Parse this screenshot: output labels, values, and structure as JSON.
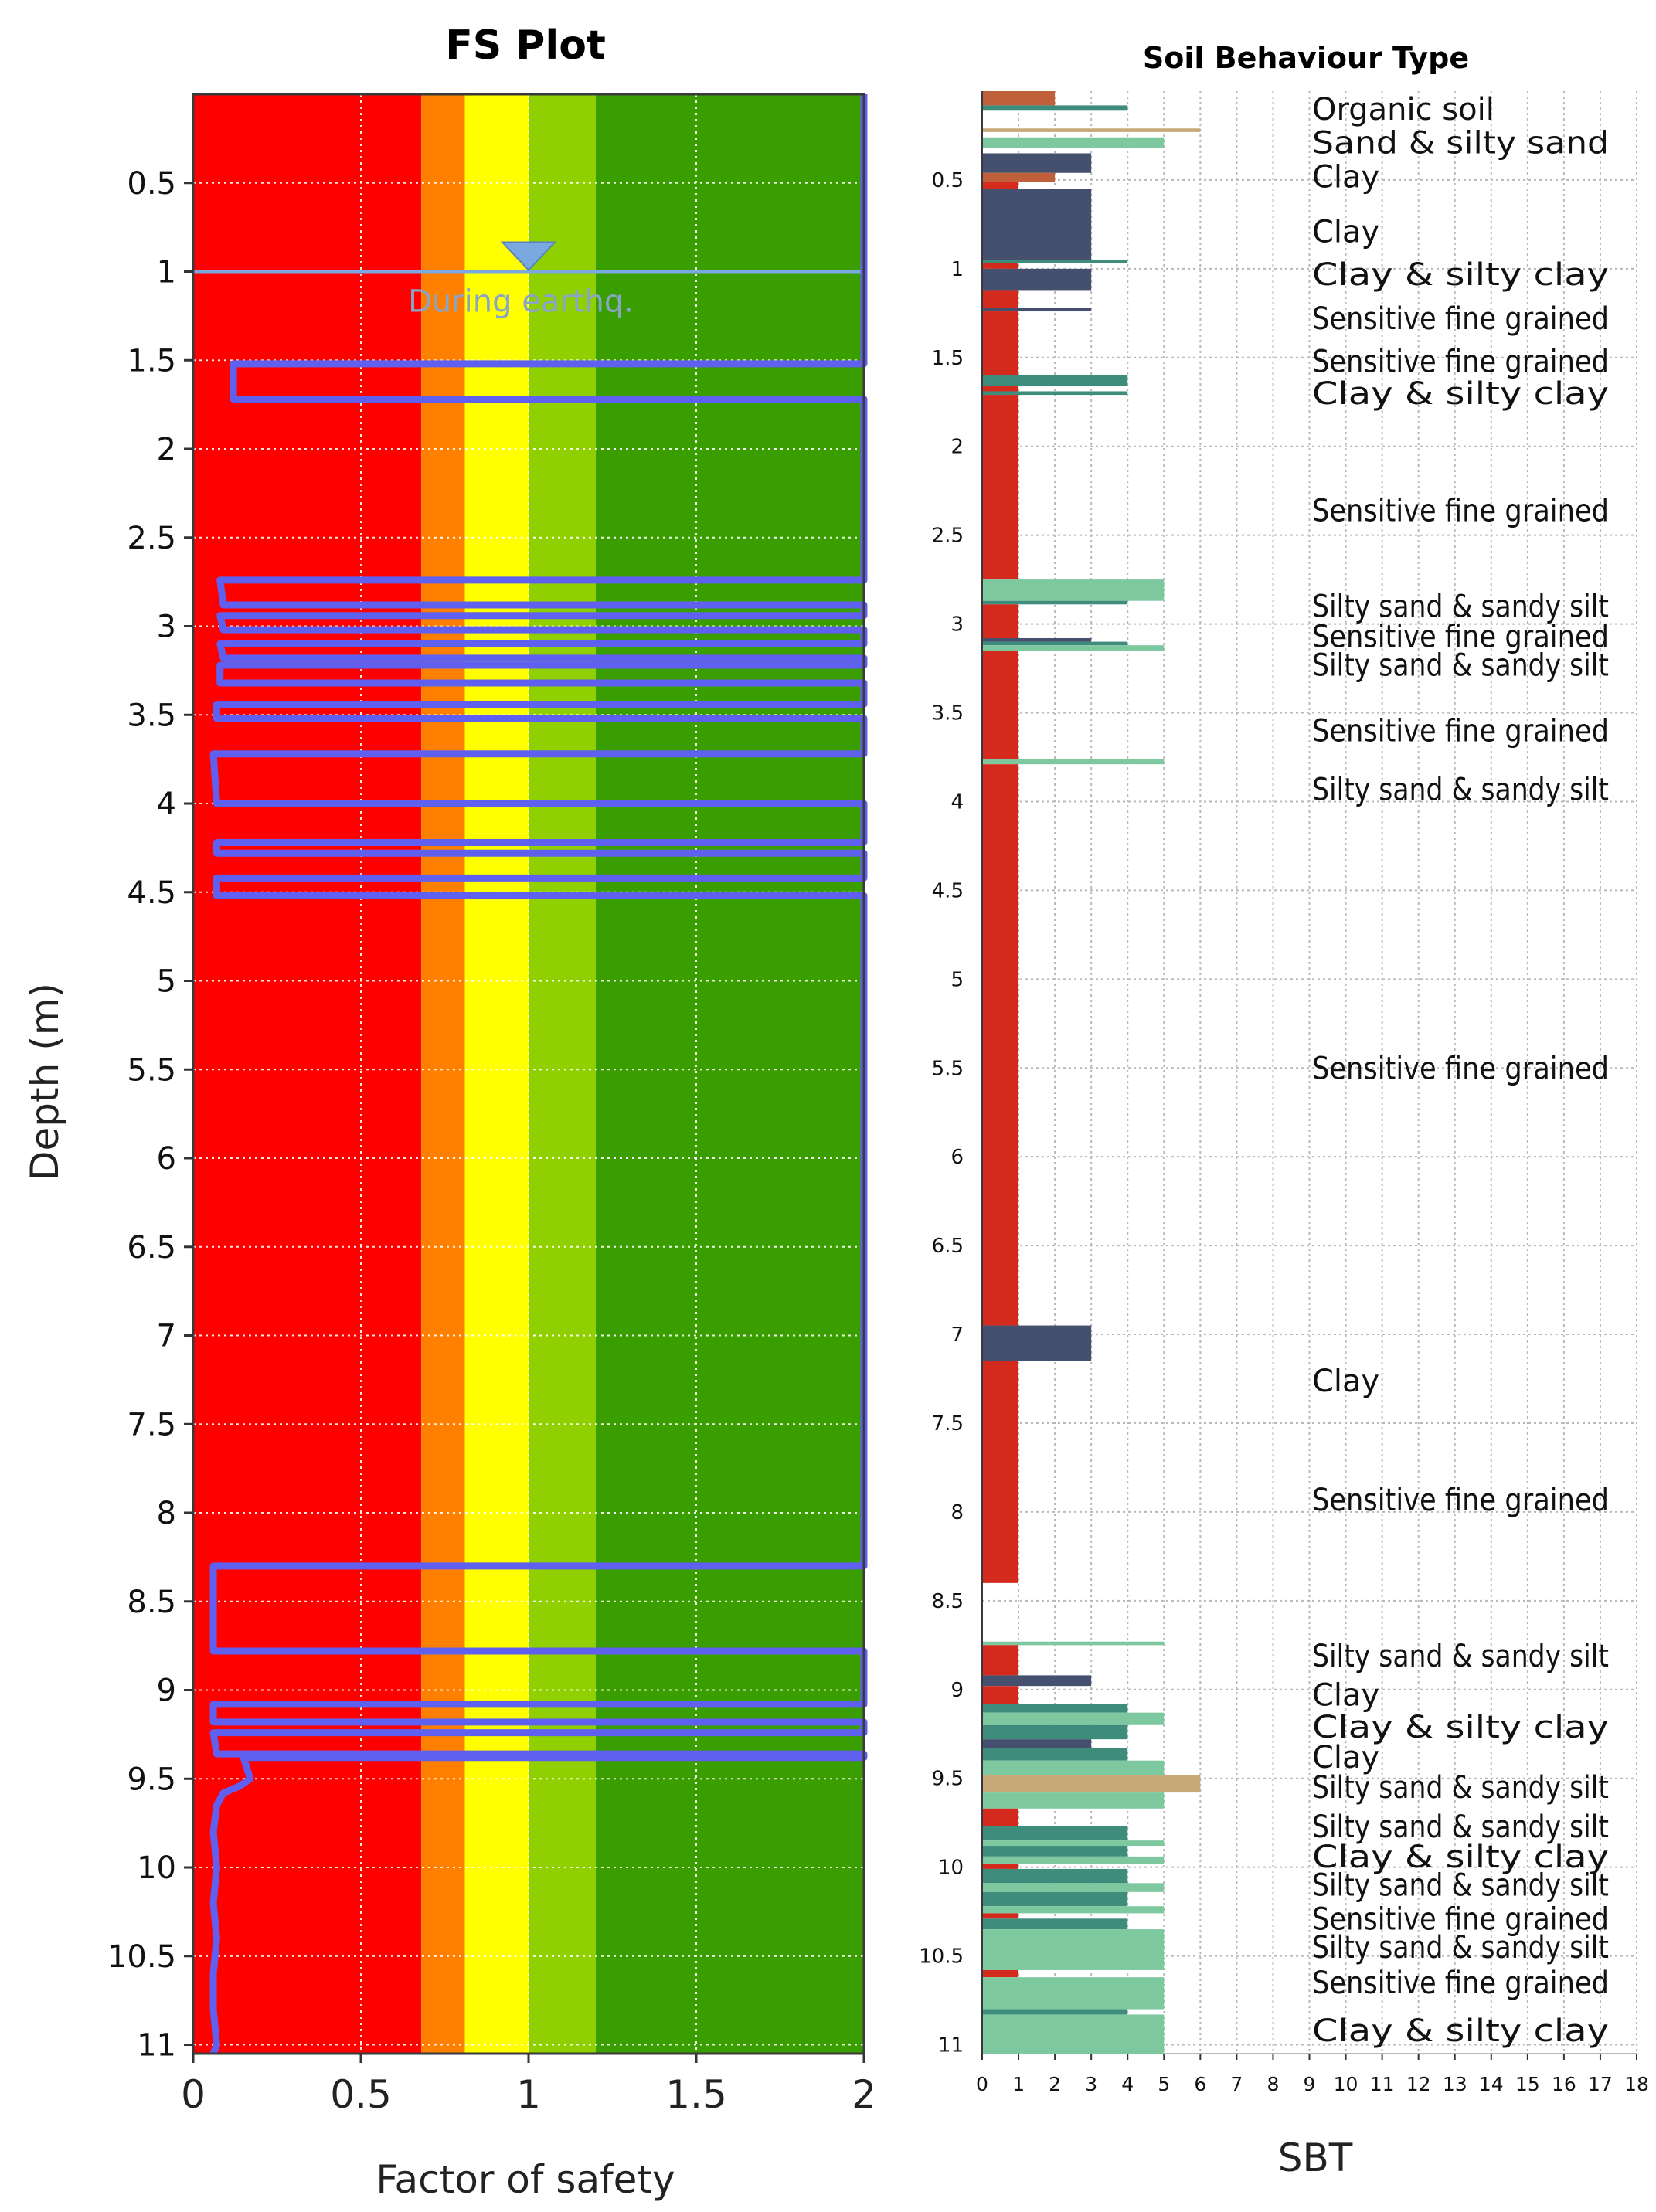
{
  "chart_data": [
    {
      "type": "line",
      "title": "FS Plot",
      "xlabel": "Factor of safety",
      "ylabel": "Depth (m)",
      "xlim": [
        0,
        2
      ],
      "ylim": [
        0,
        11.05
      ],
      "y_inverted": true,
      "xticks": [
        0,
        0.5,
        1,
        1.5,
        2
      ],
      "xtick_labels": [
        "0",
        "0.5",
        "1",
        "1.5",
        "2"
      ],
      "yticks": [
        0.5,
        1,
        1.5,
        2,
        2.5,
        3,
        3.5,
        4,
        4.5,
        5,
        5.5,
        6,
        6.5,
        7,
        7.5,
        8,
        8.5,
        9,
        9.5,
        10,
        10.5,
        11
      ],
      "ytick_labels": [
        "0.5",
        "1",
        "1.5",
        "2",
        "2.5",
        "3",
        "3.5",
        "4",
        "4.5",
        "5",
        "5.5",
        "6",
        "6.5",
        "7",
        "7.5",
        "8",
        "8.5",
        "9",
        "9.5",
        "10",
        "10.5",
        "11"
      ],
      "grid": true,
      "zones": [
        {
          "from": 0,
          "to": 0.68,
          "color": "#ff0000"
        },
        {
          "from": 0.68,
          "to": 0.81,
          "color": "#ff8000"
        },
        {
          "from": 0.81,
          "to": 1.0,
          "color": "#ffff00"
        },
        {
          "from": 1.0,
          "to": 1.2,
          "color": "#90d000"
        },
        {
          "from": 1.2,
          "to": 2.0,
          "color": "#3a9e00"
        }
      ],
      "water_table": {
        "depth": 1.0,
        "label": "During earthq.",
        "color": "#7aa8e0"
      },
      "series": [
        {
          "name": "FS",
          "color": "#6060f0",
          "points": [
            [
              2,
              0.0
            ],
            [
              2,
              1.52
            ],
            [
              0.12,
              1.52
            ],
            [
              0.12,
              1.72
            ],
            [
              2,
              1.72
            ],
            [
              2,
              2.74
            ],
            [
              0.08,
              2.74
            ],
            [
              0.09,
              2.88
            ],
            [
              2,
              2.88
            ],
            [
              2,
              2.94
            ],
            [
              0.08,
              2.94
            ],
            [
              0.09,
              3.02
            ],
            [
              2,
              3.02
            ],
            [
              2,
              3.1
            ],
            [
              0.08,
              3.1
            ],
            [
              0.09,
              3.18
            ],
            [
              2,
              3.18
            ],
            [
              2,
              3.22
            ],
            [
              0.08,
              3.22
            ],
            [
              0.08,
              3.32
            ],
            [
              2,
              3.32
            ],
            [
              2,
              3.44
            ],
            [
              0.07,
              3.44
            ],
            [
              0.07,
              3.52
            ],
            [
              2,
              3.52
            ],
            [
              2,
              3.72
            ],
            [
              0.06,
              3.72
            ],
            [
              0.07,
              4.0
            ],
            [
              2,
              4.0
            ],
            [
              2,
              4.22
            ],
            [
              0.07,
              4.22
            ],
            [
              0.07,
              4.28
            ],
            [
              2,
              4.28
            ],
            [
              2,
              4.42
            ],
            [
              0.07,
              4.42
            ],
            [
              0.07,
              4.52
            ],
            [
              2,
              4.52
            ],
            [
              2,
              8.3
            ],
            [
              0.06,
              8.3
            ],
            [
              0.06,
              8.78
            ],
            [
              2,
              8.78
            ],
            [
              2,
              9.08
            ],
            [
              0.06,
              9.08
            ],
            [
              0.06,
              9.18
            ],
            [
              2,
              9.18
            ],
            [
              2,
              9.24
            ],
            [
              0.06,
              9.24
            ],
            [
              0.07,
              9.36
            ],
            [
              2,
              9.36
            ],
            [
              2,
              9.38
            ],
            [
              0.15,
              9.38
            ],
            [
              0.17,
              9.5
            ],
            [
              0.14,
              9.54
            ],
            [
              0.09,
              9.58
            ],
            [
              0.07,
              9.65
            ],
            [
              0.06,
              9.8
            ],
            [
              0.07,
              10.0
            ],
            [
              0.06,
              10.2
            ],
            [
              0.07,
              10.4
            ],
            [
              0.06,
              10.6
            ],
            [
              0.06,
              10.8
            ],
            [
              0.07,
              11.0
            ],
            [
              0.06,
              11.05
            ]
          ]
        }
      ]
    },
    {
      "type": "bar",
      "orientation": "horizontal",
      "title": "Soil Behaviour Type",
      "xlabel": "SBT",
      "ylabel": "",
      "xlim": [
        0,
        18
      ],
      "ylim": [
        0,
        11.05
      ],
      "y_inverted": true,
      "xticks": [
        0,
        1,
        2,
        3,
        4,
        5,
        6,
        7,
        8,
        9,
        10,
        11,
        12,
        13,
        14,
        15,
        16,
        17,
        18
      ],
      "xtick_labels": [
        "0",
        "1",
        "2",
        "3",
        "4",
        "5",
        "6",
        "7",
        "8",
        "9",
        "10",
        "11",
        "12",
        "13",
        "14",
        "15",
        "16",
        "17",
        "18"
      ],
      "yticks": [
        0.5,
        1,
        1.5,
        2,
        2.5,
        3,
        3.5,
        4,
        4.5,
        5,
        5.5,
        6,
        6.5,
        7,
        7.5,
        8,
        8.5,
        9,
        9.5,
        10,
        10.5,
        11
      ],
      "ytick_labels": [
        "0.5",
        "1",
        "1.5",
        "2",
        "2.5",
        "3",
        "3.5",
        "4",
        "4.5",
        "5",
        "5.5",
        "6",
        "6.5",
        "7",
        "7.5",
        "8",
        "8.5",
        "9",
        "9.5",
        "10",
        "10.5",
        "11"
      ],
      "grid": true,
      "colors": {
        "1": "#d42a1e",
        "2": "#c0603a",
        "3": "#45506e",
        "4": "#3e8c7c",
        "5": "#7ec8a0",
        "6": "#c8a878",
        "7": "#a8c890"
      },
      "bars": [
        {
          "top": 0.0,
          "bottom": 0.08,
          "value": 2
        },
        {
          "top": 0.08,
          "bottom": 0.11,
          "value": 4
        },
        {
          "top": 0.21,
          "bottom": 0.23,
          "value": 6
        },
        {
          "top": 0.26,
          "bottom": 0.32,
          "value": 5
        },
        {
          "top": 0.35,
          "bottom": 0.46,
          "value": 3
        },
        {
          "top": 0.46,
          "bottom": 0.51,
          "value": 2
        },
        {
          "top": 0.51,
          "bottom": 0.55,
          "value": 1
        },
        {
          "top": 0.55,
          "bottom": 0.95,
          "value": 3
        },
        {
          "top": 0.95,
          "bottom": 0.97,
          "value": 4
        },
        {
          "top": 0.97,
          "bottom": 1.0,
          "value": 1
        },
        {
          "top": 1.0,
          "bottom": 1.12,
          "value": 3
        },
        {
          "top": 1.12,
          "bottom": 1.22,
          "value": 1
        },
        {
          "top": 1.22,
          "bottom": 1.24,
          "value": 3
        },
        {
          "top": 1.24,
          "bottom": 1.6,
          "value": 1
        },
        {
          "top": 1.6,
          "bottom": 1.66,
          "value": 4
        },
        {
          "top": 1.66,
          "bottom": 1.69,
          "value": 1
        },
        {
          "top": 1.69,
          "bottom": 1.71,
          "value": 4
        },
        {
          "top": 1.71,
          "bottom": 2.75,
          "value": 1
        },
        {
          "top": 2.75,
          "bottom": 2.87,
          "value": 5
        },
        {
          "top": 2.87,
          "bottom": 2.89,
          "value": 4
        },
        {
          "top": 2.89,
          "bottom": 3.08,
          "value": 1
        },
        {
          "top": 3.08,
          "bottom": 3.1,
          "value": 3
        },
        {
          "top": 3.1,
          "bottom": 3.12,
          "value": 4
        },
        {
          "top": 3.12,
          "bottom": 3.15,
          "value": 5
        },
        {
          "top": 3.15,
          "bottom": 3.76,
          "value": 1
        },
        {
          "top": 3.76,
          "bottom": 3.79,
          "value": 5
        },
        {
          "top": 3.79,
          "bottom": 6.95,
          "value": 1
        },
        {
          "top": 6.95,
          "bottom": 7.15,
          "value": 3
        },
        {
          "top": 7.15,
          "bottom": 8.4,
          "value": 1
        },
        {
          "top": 8.73,
          "bottom": 8.75,
          "value": 5
        },
        {
          "top": 8.75,
          "bottom": 8.92,
          "value": 1
        },
        {
          "top": 8.92,
          "bottom": 8.98,
          "value": 3
        },
        {
          "top": 8.98,
          "bottom": 9.08,
          "value": 1
        },
        {
          "top": 9.08,
          "bottom": 9.13,
          "value": 4
        },
        {
          "top": 9.13,
          "bottom": 9.2,
          "value": 5
        },
        {
          "top": 9.2,
          "bottom": 9.28,
          "value": 4
        },
        {
          "top": 9.28,
          "bottom": 9.33,
          "value": 3
        },
        {
          "top": 9.33,
          "bottom": 9.4,
          "value": 4
        },
        {
          "top": 9.4,
          "bottom": 9.48,
          "value": 5
        },
        {
          "top": 9.48,
          "bottom": 9.58,
          "value": 6
        },
        {
          "top": 9.58,
          "bottom": 9.67,
          "value": 5
        },
        {
          "top": 9.67,
          "bottom": 9.77,
          "value": 1
        },
        {
          "top": 9.77,
          "bottom": 9.85,
          "value": 4
        },
        {
          "top": 9.85,
          "bottom": 9.88,
          "value": 5
        },
        {
          "top": 9.88,
          "bottom": 9.94,
          "value": 4
        },
        {
          "top": 9.94,
          "bottom": 9.98,
          "value": 5
        },
        {
          "top": 9.98,
          "bottom": 10.01,
          "value": 1
        },
        {
          "top": 10.01,
          "bottom": 10.09,
          "value": 4
        },
        {
          "top": 10.09,
          "bottom": 10.14,
          "value": 5
        },
        {
          "top": 10.14,
          "bottom": 10.22,
          "value": 4
        },
        {
          "top": 10.22,
          "bottom": 10.26,
          "value": 5
        },
        {
          "top": 10.26,
          "bottom": 10.29,
          "value": 1
        },
        {
          "top": 10.29,
          "bottom": 10.35,
          "value": 4
        },
        {
          "top": 10.35,
          "bottom": 10.58,
          "value": 5
        },
        {
          "top": 10.58,
          "bottom": 10.62,
          "value": 1
        },
        {
          "top": 10.62,
          "bottom": 10.8,
          "value": 5
        },
        {
          "top": 10.8,
          "bottom": 10.83,
          "value": 4
        },
        {
          "top": 10.83,
          "bottom": 11.05,
          "value": 5
        }
      ],
      "annotations": [
        {
          "depth": 0.1,
          "text": "Organic soil"
        },
        {
          "depth": 0.29,
          "text": "Sand & silty sand"
        },
        {
          "depth": 0.48,
          "text": "Clay"
        },
        {
          "depth": 0.79,
          "text": "Clay"
        },
        {
          "depth": 1.03,
          "text": "Clay & silty clay"
        },
        {
          "depth": 1.28,
          "text": "Sensitive fine grained"
        },
        {
          "depth": 1.52,
          "text": "Sensitive fine grained"
        },
        {
          "depth": 1.7,
          "text": "Clay & silty clay"
        },
        {
          "depth": 2.36,
          "text": "Sensitive fine grained"
        },
        {
          "depth": 2.9,
          "text": "Silty sand & sandy silt"
        },
        {
          "depth": 3.07,
          "text": "Sensitive fine grained"
        },
        {
          "depth": 3.23,
          "text": "Silty sand & sandy silt"
        },
        {
          "depth": 3.6,
          "text": "Sensitive fine grained"
        },
        {
          "depth": 3.93,
          "text": "Silty sand & sandy silt"
        },
        {
          "depth": 5.5,
          "text": "Sensitive fine grained"
        },
        {
          "depth": 7.26,
          "text": "Clay"
        },
        {
          "depth": 7.93,
          "text": "Sensitive fine grained"
        },
        {
          "depth": 8.81,
          "text": "Silty sand & sandy silt"
        },
        {
          "depth": 9.03,
          "text": "Clay"
        },
        {
          "depth": 9.21,
          "text": "Clay & silty clay"
        },
        {
          "depth": 9.38,
          "text": "Clay"
        },
        {
          "depth": 9.55,
          "text": "Silty sand & sandy silt"
        },
        {
          "depth": 9.77,
          "text": "Silty sand & sandy silt"
        },
        {
          "depth": 9.94,
          "text": "Clay & silty clay"
        },
        {
          "depth": 10.1,
          "text": "Silty sand & sandy silt"
        },
        {
          "depth": 10.29,
          "text": "Sensitive fine grained"
        },
        {
          "depth": 10.45,
          "text": "Silty sand & sandy silt"
        },
        {
          "depth": 10.65,
          "text": "Sensitive fine grained"
        },
        {
          "depth": 10.92,
          "text": "Clay & silty clay"
        }
      ]
    }
  ]
}
